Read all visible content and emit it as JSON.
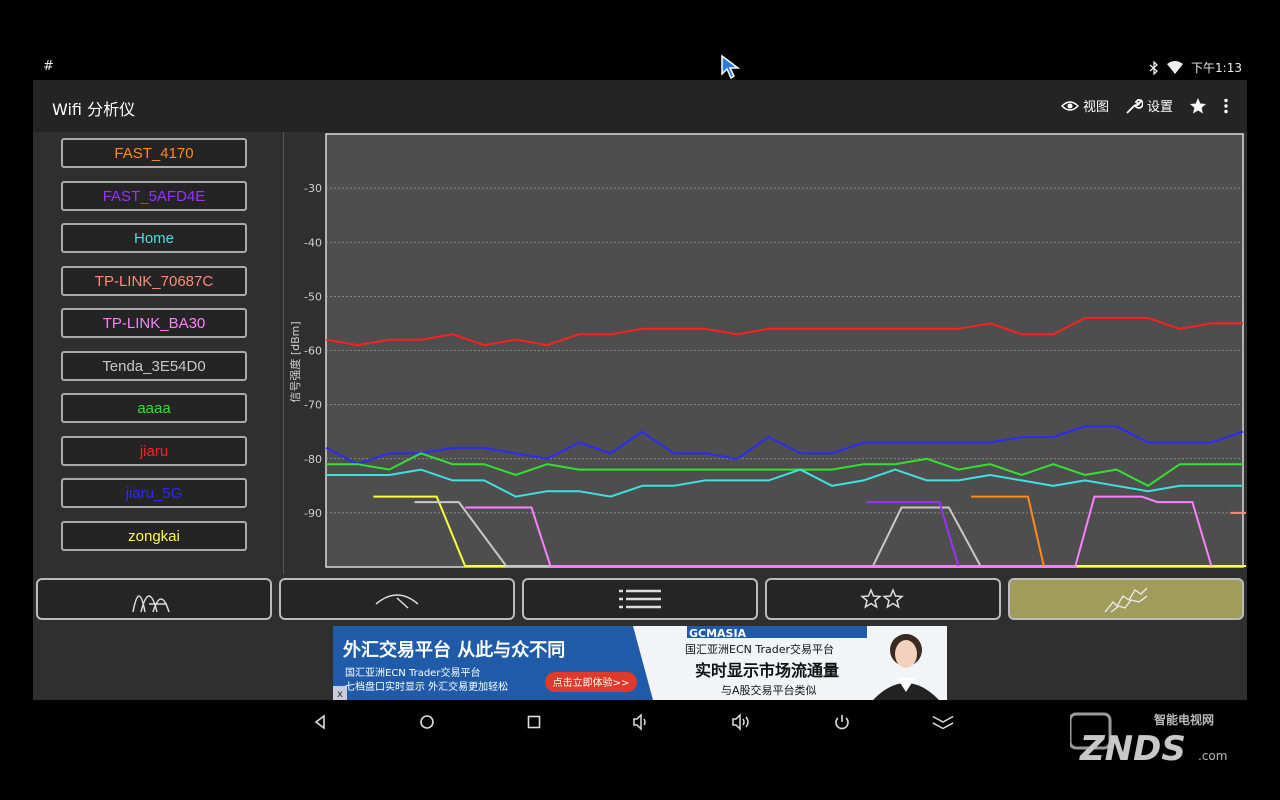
{
  "status_bar": {
    "left": "#",
    "time": "下午1:13",
    "icons": [
      "bluetooth-icon",
      "wifi-icon"
    ]
  },
  "app": {
    "title": "Wifi 分析仪",
    "actions": [
      {
        "icon": "eye-icon",
        "label": "视图"
      },
      {
        "icon": "wrench-icon",
        "label": "设置"
      },
      {
        "icon": "star-icon",
        "label": ""
      },
      {
        "icon": "overflow-menu-icon",
        "label": ""
      }
    ]
  },
  "networks": [
    {
      "name": "FAST_4170",
      "color": "#ff8c1a"
    },
    {
      "name": "FAST_5AFD4E",
      "color": "#9b30ff"
    },
    {
      "name": "Home",
      "color": "#40e0e0"
    },
    {
      "name": "TP-LINK_70687C",
      "color": "#ff8a7a"
    },
    {
      "name": "TP-LINK_BA30",
      "color": "#ff80ff"
    },
    {
      "name": "Tenda_3E54D0",
      "color": "#c8c8c8"
    },
    {
      "name": "aaaa",
      "color": "#33e033"
    },
    {
      "name": "jiaru",
      "color": "#ff2020"
    },
    {
      "name": "jiaru_5G",
      "color": "#2a2aff"
    },
    {
      "name": "zongkai",
      "color": "#ffff40"
    }
  ],
  "tabs": [
    {
      "name": "channel-graph",
      "active": false
    },
    {
      "name": "signal-meter",
      "active": false
    },
    {
      "name": "ap-list",
      "active": false
    },
    {
      "name": "channel-rating",
      "active": false
    },
    {
      "name": "time-graph",
      "active": true
    }
  ],
  "chart_data": {
    "type": "line",
    "ylabel": "信号强度 [dBm]",
    "ylim": [
      -100,
      -20
    ],
    "yticks": [
      -30,
      -40,
      -50,
      -60,
      -70,
      -80,
      -90
    ],
    "grid": true,
    "x": [
      0,
      1,
      2,
      3,
      4,
      5,
      6,
      7,
      8,
      9,
      10,
      11,
      12,
      13,
      14,
      15,
      16,
      17,
      18,
      19,
      20,
      21,
      22,
      23,
      24,
      25,
      26,
      27,
      28,
      29
    ],
    "series": [
      {
        "name": "jiaru",
        "color": "#ff2020",
        "values": [
          -58,
          -59,
          -58,
          -58,
          -57,
          -59,
          -58,
          -59,
          -57,
          -57,
          -56,
          -56,
          -56,
          -57,
          -56,
          -56,
          -56,
          -56,
          -56,
          -56,
          -56,
          -55,
          -57,
          -57,
          -54,
          -54,
          -54,
          -56,
          -55,
          -55
        ]
      },
      {
        "name": "jiaru_5G",
        "color": "#2a2aff",
        "values": [
          -78,
          -81,
          -79,
          -79,
          -78,
          -78,
          -79,
          -80,
          -77,
          -79,
          -75,
          -79,
          -79,
          -80,
          -76,
          -79,
          -79,
          -77,
          -77,
          -77,
          -77,
          -77,
          -76,
          -76,
          -74,
          -74,
          -77,
          -77,
          -77,
          -75
        ]
      },
      {
        "name": "aaaa",
        "color": "#33e033",
        "values": [
          -81,
          -81,
          -82,
          -79,
          -81,
          -81,
          -83,
          -81,
          -82,
          -82,
          -82,
          -82,
          -82,
          -82,
          -82,
          -82,
          -82,
          -81,
          -81,
          -80,
          -82,
          -81,
          -83,
          -81,
          -83,
          -82,
          -85,
          -81,
          -81,
          -81
        ]
      },
      {
        "name": "Home",
        "color": "#40e0e0",
        "values": [
          -83,
          -83,
          -83,
          -82,
          -84,
          -84,
          -87,
          -86,
          -86,
          -87,
          -85,
          -85,
          -84,
          -84,
          -84,
          -82,
          -85,
          -84,
          -82,
          -84,
          -84,
          -83,
          -84,
          -85,
          -84,
          -85,
          -86,
          -85,
          -85,
          -85
        ]
      },
      {
        "name": "zongkai",
        "color": "#ffff40",
        "points": [
          [
            1.5,
            -87
          ],
          [
            3.5,
            -87
          ],
          [
            4.4,
            -100
          ],
          [
            29.5,
            -100
          ]
        ]
      },
      {
        "name": "Tenda_3E54D0",
        "color": "#c8c8c8",
        "points": [
          [
            2.8,
            -88
          ],
          [
            4.2,
            -88
          ],
          [
            5.7,
            -100
          ],
          [
            17.3,
            -100
          ],
          [
            18.2,
            -89
          ],
          [
            19.7,
            -89
          ],
          [
            20.7,
            -100
          ]
        ]
      },
      {
        "name": "TP-LINK_BA30",
        "color": "#ff80ff",
        "points": [
          [
            4.4,
            -89
          ],
          [
            6.5,
            -89
          ],
          [
            7.1,
            -100
          ],
          [
            23.7,
            -100
          ],
          [
            24.3,
            -87
          ],
          [
            25.8,
            -87
          ],
          [
            26.3,
            -88
          ],
          [
            27.4,
            -88
          ],
          [
            28.0,
            -100
          ]
        ]
      },
      {
        "name": "FAST_5AFD4E",
        "color": "#9b30ff",
        "points": [
          [
            17.1,
            -88
          ],
          [
            19.4,
            -88
          ],
          [
            20.0,
            -100
          ]
        ]
      },
      {
        "name": "FAST_4170",
        "color": "#ff8c1a",
        "points": [
          [
            20.4,
            -87
          ],
          [
            22.2,
            -87
          ],
          [
            22.7,
            -100
          ]
        ]
      },
      {
        "name": "TP-LINK_70687C",
        "color": "#ff8a7a",
        "points": [
          [
            28.6,
            -90
          ],
          [
            29.5,
            -90
          ]
        ]
      }
    ]
  },
  "ad": {
    "headline": "外汇交易平台  从此与众不同",
    "line1": "国汇亚洲ECN Trader交易平台",
    "line2": "七档盘口实时显示  外汇交易更加轻松",
    "cta": "点击立即体验>>",
    "brand": "GCMASIA",
    "right_title": "国汇亚洲ECN Trader交易平台",
    "right_big": "实时显示市场流通量",
    "right_sub": "与A股交易平台类似",
    "close": "x"
  },
  "watermark": {
    "top": "智能电视网",
    "main": "ZNDS",
    "suffix": ".com"
  }
}
